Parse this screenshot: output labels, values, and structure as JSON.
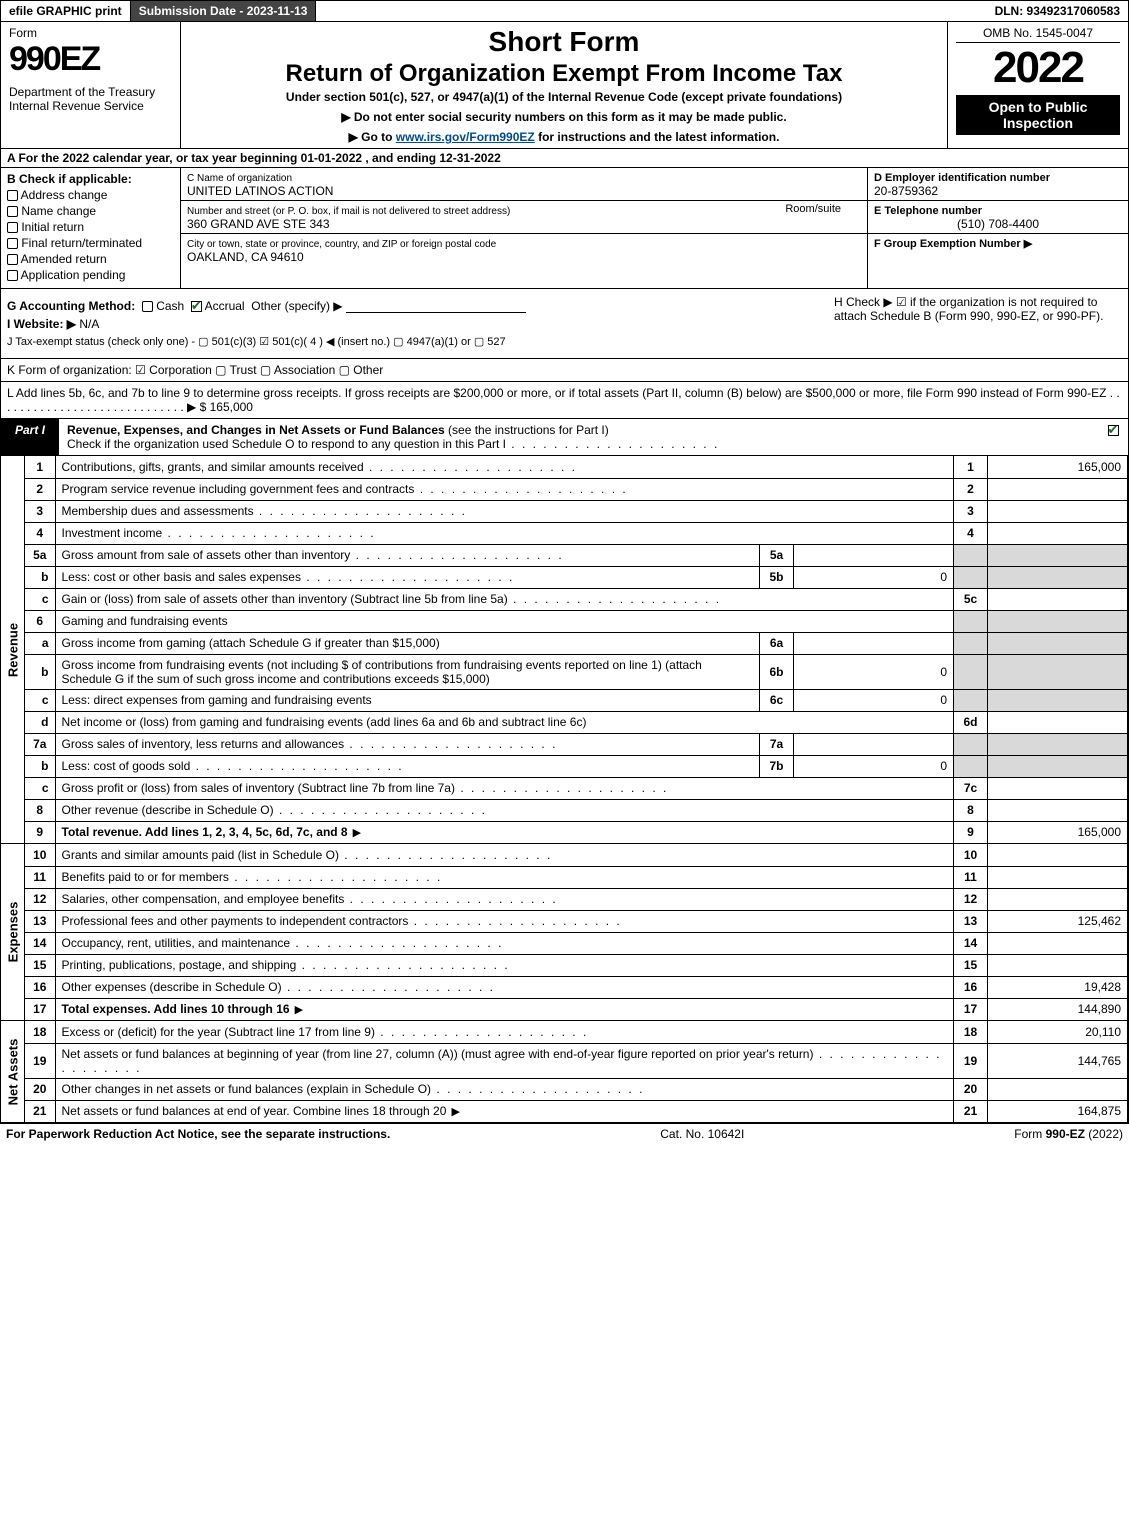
{
  "topbar": {
    "efile": "efile GRAPHIC print",
    "submission": "Submission Date - 2023-11-13",
    "dln": "DLN: 93492317060583"
  },
  "header": {
    "form_word": "Form",
    "form_no": "990EZ",
    "dept": "Department of the Treasury\nInternal Revenue Service",
    "short_form": "Short Form",
    "title": "Return of Organization Exempt From Income Tax",
    "subtitle": "Under section 501(c), 527, or 4947(a)(1) of the Internal Revenue Code (except private foundations)",
    "note1": "▶ Do not enter social security numbers on this form as it may be made public.",
    "note2_pre": "▶ Go to ",
    "note2_link": "www.irs.gov/Form990EZ",
    "note2_post": " for instructions and the latest information.",
    "omb": "OMB No. 1545-0047",
    "year": "2022",
    "open": "Open to Public Inspection"
  },
  "row_A": "A  For the 2022 calendar year, or tax year beginning 01-01-2022 , and ending 12-31-2022",
  "B": {
    "label": "B  Check if applicable:",
    "opts": [
      "Address change",
      "Name change",
      "Initial return",
      "Final return/terminated",
      "Amended return",
      "Application pending"
    ]
  },
  "C": {
    "name_lbl": "C Name of organization",
    "name": "UNITED LATINOS ACTION",
    "street_lbl": "Number and street (or P. O. box, if mail is not delivered to street address)",
    "room_lbl": "Room/suite",
    "street": "360 GRAND AVE STE 343",
    "city_lbl": "City or town, state or province, country, and ZIP or foreign postal code",
    "city": "OAKLAND, CA  94610"
  },
  "DEF": {
    "D_lbl": "D Employer identification number",
    "D_val": "20-8759362",
    "E_lbl": "E Telephone number",
    "E_val": "(510) 708-4400",
    "F_lbl": "F Group Exemption Number  ▶"
  },
  "G": {
    "label": "G Accounting Method:",
    "cash": "Cash",
    "accrual": "Accrual",
    "other": "Other (specify) ▶"
  },
  "H": "H  Check ▶ ☑ if the organization is not required to attach Schedule B (Form 990, 990-EZ, or 990-PF).",
  "I": {
    "label": "I Website: ▶",
    "val": "N/A"
  },
  "J": "J Tax-exempt status (check only one) - ▢ 501(c)(3) ☑ 501(c)( 4 ) ◀ (insert no.) ▢ 4947(a)(1) or ▢ 527",
  "K": "K Form of organization: ☑ Corporation  ▢ Trust  ▢ Association  ▢ Other",
  "L": "L Add lines 5b, 6c, and 7b to line 9 to determine gross receipts. If gross receipts are $200,000 or more, or if total assets (Part II, column (B) below) are $500,000 or more, file Form 990 instead of Form 990-EZ  .  .  .  .  .  .  .  .  .  .  .  .  .  .  .  .  .  .  .  .  .  .  .  .  .  .  .  .  .  ▶ $ 165,000",
  "part1": {
    "badge": "Part I",
    "title_bold": "Revenue, Expenses, and Changes in Net Assets or Fund Balances",
    "title_rest": " (see the instructions for Part I)",
    "check_line": "Check if the organization used Schedule O to respond to any question in this Part I"
  },
  "sections": {
    "revenue": "Revenue",
    "expenses": "Expenses",
    "netassets": "Net Assets"
  },
  "rev_lines": [
    {
      "no": "1",
      "desc": "Contributions, gifts, grants, and similar amounts received",
      "num": "1",
      "amt": "165,000"
    },
    {
      "no": "2",
      "desc": "Program service revenue including government fees and contracts",
      "num": "2",
      "amt": ""
    },
    {
      "no": "3",
      "desc": "Membership dues and assessments",
      "num": "3",
      "amt": ""
    },
    {
      "no": "4",
      "desc": "Investment income",
      "num": "4",
      "amt": ""
    },
    {
      "no": "5a",
      "desc": "Gross amount from sale of assets other than inventory",
      "inner_no": "5a",
      "inner_val": ""
    },
    {
      "no": "b",
      "desc": "Less: cost or other basis and sales expenses",
      "inner_no": "5b",
      "inner_val": "0"
    },
    {
      "no": "c",
      "desc": "Gain or (loss) from sale of assets other than inventory (Subtract line 5b from line 5a)",
      "num": "5c",
      "amt": ""
    },
    {
      "no": "6",
      "desc": "Gaming and fundraising events",
      "shade_num": true
    },
    {
      "no": "a",
      "desc": "Gross income from gaming (attach Schedule G if greater than $15,000)",
      "inner_no": "6a",
      "inner_val": ""
    },
    {
      "no": "b",
      "desc": "Gross income from fundraising events (not including $                  of contributions from fundraising events reported on line 1) (attach Schedule G if the sum of such gross income and contributions exceeds $15,000)",
      "inner_no": "6b",
      "inner_val": "0"
    },
    {
      "no": "c",
      "desc": "Less: direct expenses from gaming and fundraising events",
      "inner_no": "6c",
      "inner_val": "0"
    },
    {
      "no": "d",
      "desc": "Net income or (loss) from gaming and fundraising events (add lines 6a and 6b and subtract line 6c)",
      "num": "6d",
      "amt": ""
    },
    {
      "no": "7a",
      "desc": "Gross sales of inventory, less returns and allowances",
      "inner_no": "7a",
      "inner_val": ""
    },
    {
      "no": "b",
      "desc": "Less: cost of goods sold",
      "inner_no": "7b",
      "inner_val": "0"
    },
    {
      "no": "c",
      "desc": "Gross profit or (loss) from sales of inventory (Subtract line 7b from line 7a)",
      "num": "7c",
      "amt": ""
    },
    {
      "no": "8",
      "desc": "Other revenue (describe in Schedule O)",
      "num": "8",
      "amt": ""
    },
    {
      "no": "9",
      "desc": "Total revenue. Add lines 1, 2, 3, 4, 5c, 6d, 7c, and 8",
      "num": "9",
      "amt": "165,000",
      "bold": true,
      "arrow": true
    }
  ],
  "exp_lines": [
    {
      "no": "10",
      "desc": "Grants and similar amounts paid (list in Schedule O)",
      "num": "10",
      "amt": ""
    },
    {
      "no": "11",
      "desc": "Benefits paid to or for members",
      "num": "11",
      "amt": ""
    },
    {
      "no": "12",
      "desc": "Salaries, other compensation, and employee benefits",
      "num": "12",
      "amt": ""
    },
    {
      "no": "13",
      "desc": "Professional fees and other payments to independent contractors",
      "num": "13",
      "amt": "125,462"
    },
    {
      "no": "14",
      "desc": "Occupancy, rent, utilities, and maintenance",
      "num": "14",
      "amt": ""
    },
    {
      "no": "15",
      "desc": "Printing, publications, postage, and shipping",
      "num": "15",
      "amt": ""
    },
    {
      "no": "16",
      "desc": "Other expenses (describe in Schedule O)",
      "num": "16",
      "amt": "19,428"
    },
    {
      "no": "17",
      "desc": "Total expenses. Add lines 10 through 16",
      "num": "17",
      "amt": "144,890",
      "bold": true,
      "arrow": true
    }
  ],
  "na_lines": [
    {
      "no": "18",
      "desc": "Excess or (deficit) for the year (Subtract line 17 from line 9)",
      "num": "18",
      "amt": "20,110"
    },
    {
      "no": "19",
      "desc": "Net assets or fund balances at beginning of year (from line 27, column (A)) (must agree with end-of-year figure reported on prior year's return)",
      "num": "19",
      "amt": "144,765"
    },
    {
      "no": "20",
      "desc": "Other changes in net assets or fund balances (explain in Schedule O)",
      "num": "20",
      "amt": ""
    },
    {
      "no": "21",
      "desc": "Net assets or fund balances at end of year. Combine lines 18 through 20",
      "num": "21",
      "amt": "164,875",
      "arrow": true
    }
  ],
  "footer": {
    "left": "For Paperwork Reduction Act Notice, see the separate instructions.",
    "center": "Cat. No. 10642I",
    "right_pre": "Form ",
    "right_bold": "990-EZ",
    "right_post": " (2022)"
  },
  "colors": {
    "shade": "#d9d9d9",
    "black": "#000000",
    "link": "#004b87",
    "check_green": "#1a6b1a",
    "dark_grey": "#444444"
  }
}
